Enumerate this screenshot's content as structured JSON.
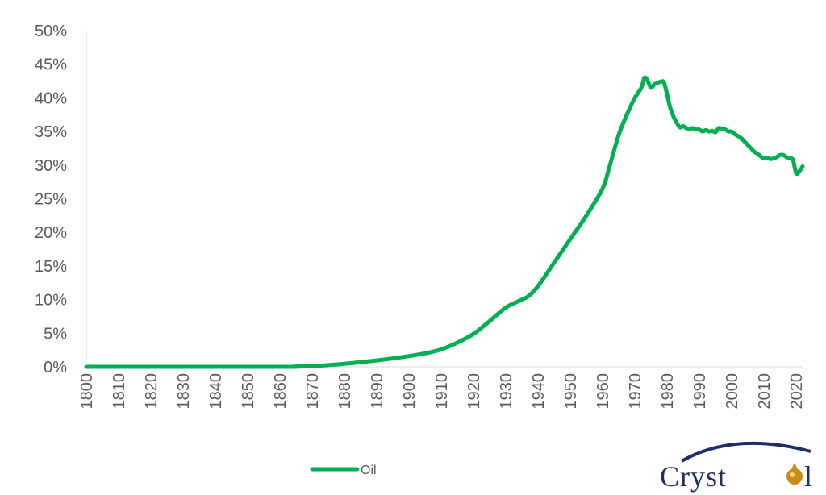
{
  "chart_data": {
    "type": "line",
    "title": "",
    "xlabel": "",
    "ylabel": "",
    "xlim": [
      1800,
      2022
    ],
    "ylim": [
      0,
      50
    ],
    "y_ticks": [
      "0%",
      "5%",
      "10%",
      "15%",
      "20%",
      "25%",
      "30%",
      "35%",
      "40%",
      "45%",
      "50%"
    ],
    "x_ticks": [
      "1800",
      "1810",
      "1820",
      "1830",
      "1840",
      "1850",
      "1860",
      "1870",
      "1880",
      "1890",
      "1900",
      "1910",
      "1920",
      "1930",
      "1940",
      "1950",
      "1960",
      "1970",
      "1980",
      "1990",
      "2000",
      "2010",
      "2020"
    ],
    "grid": false,
    "legend_position": "bottom",
    "series": [
      {
        "name": "Oil",
        "color": "#00b050",
        "x": [
          1800,
          1860,
          1865,
          1870,
          1875,
          1880,
          1885,
          1890,
          1895,
          1900,
          1905,
          1910,
          1915,
          1920,
          1925,
          1930,
          1935,
          1937,
          1940,
          1945,
          1950,
          1955,
          1960,
          1962,
          1965,
          1968,
          1970,
          1972,
          1973,
          1974,
          1975,
          1976,
          1977,
          1978,
          1979,
          1980,
          1981,
          1982,
          1983,
          1984,
          1985,
          1986,
          1987,
          1988,
          1989,
          1990,
          1991,
          1992,
          1993,
          1994,
          1995,
          1996,
          1997,
          1998,
          1999,
          2000,
          2001,
          2002,
          2003,
          2004,
          2005,
          2006,
          2007,
          2008,
          2009,
          2010,
          2011,
          2012,
          2013,
          2014,
          2015,
          2016,
          2017,
          2018,
          2019,
          2020,
          2021,
          2022
        ],
        "values": [
          0,
          0,
          0.05,
          0.1,
          0.25,
          0.45,
          0.7,
          0.95,
          1.25,
          1.6,
          2.0,
          2.6,
          3.6,
          4.9,
          6.8,
          8.8,
          10.0,
          10.5,
          12.0,
          15.5,
          19.0,
          22.5,
          26.5,
          29.5,
          34.5,
          38.0,
          40.0,
          41.5,
          43.0,
          42.5,
          41.5,
          42.0,
          42.2,
          42.4,
          42.3,
          40.5,
          38.5,
          37.2,
          36.3,
          35.6,
          35.8,
          35.5,
          35.4,
          35.5,
          35.3,
          35.3,
          35.0,
          35.2,
          35.0,
          35.1,
          34.9,
          35.5,
          35.4,
          35.3,
          35.0,
          35.0,
          34.6,
          34.3,
          34.0,
          33.5,
          33.0,
          32.5,
          32.0,
          31.7,
          31.3,
          31.0,
          31.1,
          30.9,
          31.0,
          31.2,
          31.5,
          31.5,
          31.2,
          31.0,
          30.8,
          28.8,
          29.1,
          29.8
        ]
      }
    ]
  },
  "legend": {
    "label": "Oil"
  },
  "logo": {
    "text": "Cryst",
    "text_end": "l"
  }
}
